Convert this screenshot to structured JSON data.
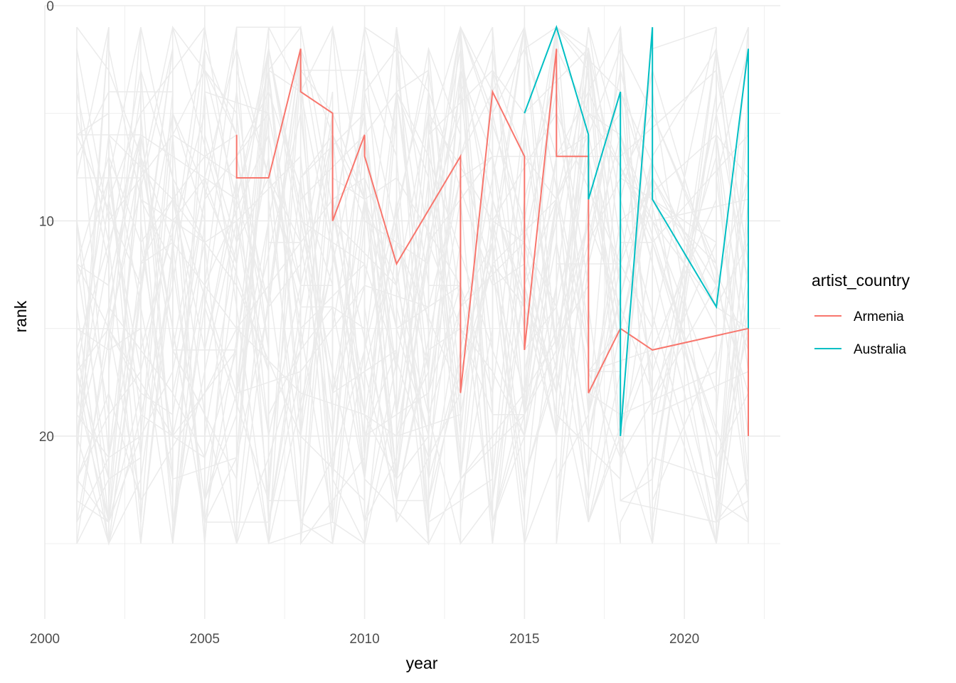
{
  "chart_data": {
    "type": "line",
    "xlabel": "year",
    "ylabel": "rank",
    "xlim": [
      2000,
      2023
    ],
    "ylim": [
      0,
      28.5
    ],
    "y_reversed": true,
    "x_ticks": [
      2000,
      2005,
      2010,
      2015,
      2020
    ],
    "y_ticks": [
      0,
      10,
      20
    ],
    "grid": true,
    "background_color": "#ebebeb",
    "legend": {
      "title": "artist_country",
      "position": "right",
      "entries": [
        {
          "name": "Armenia",
          "color": "#F8766D"
        },
        {
          "name": "Australia",
          "color": "#00BFC4"
        }
      ]
    },
    "series": [
      {
        "name": "Armenia",
        "color": "#F8766D",
        "points": [
          [
            2006,
            6
          ],
          [
            2006,
            8
          ],
          [
            2007,
            8
          ],
          [
            2008,
            2
          ],
          [
            2008,
            4
          ],
          [
            2009,
            5
          ],
          [
            2009,
            10
          ],
          [
            2010,
            6
          ],
          [
            2010,
            7
          ],
          [
            2011,
            12
          ],
          [
            2013,
            7
          ],
          [
            2013,
            18
          ],
          [
            2014,
            4
          ],
          [
            2015,
            7
          ],
          [
            2015,
            16
          ],
          [
            2016,
            2
          ],
          [
            2016,
            7
          ],
          [
            2017,
            7
          ],
          [
            2017,
            18
          ],
          [
            2018,
            15
          ],
          [
            2019,
            16
          ],
          [
            2022,
            15
          ],
          [
            2022,
            20
          ]
        ]
      },
      {
        "name": "Australia",
        "color": "#00BFC4",
        "points": [
          [
            2015,
            5
          ],
          [
            2016,
            1
          ],
          [
            2017,
            6
          ],
          [
            2017,
            9
          ],
          [
            2018,
            4
          ],
          [
            2018,
            20
          ],
          [
            2019,
            1
          ],
          [
            2019,
            9
          ],
          [
            2021,
            14
          ],
          [
            2022,
            2
          ],
          [
            2022,
            15
          ]
        ]
      }
    ]
  }
}
